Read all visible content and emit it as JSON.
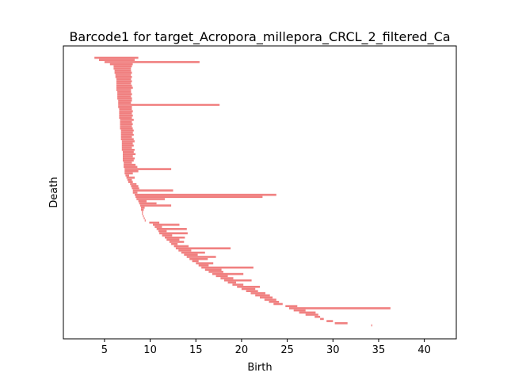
{
  "chart_data": {
    "type": "barcode",
    "title": "Barcode1 for target_Acropora_millepora_CRCL_2_filtered_Ca",
    "xlabel": "Birth",
    "ylabel": "Death",
    "xlim": [
      0.5,
      43.5
    ],
    "xticks": [
      5,
      10,
      15,
      20,
      25,
      30,
      35,
      40
    ],
    "grid": false,
    "bar_color": "#f08080",
    "segments": [
      [
        3.9,
        8.7
      ],
      [
        4.4,
        8.3
      ],
      [
        5.0,
        15.4
      ],
      [
        5.6,
        8.1
      ],
      [
        6.0,
        8.0
      ],
      [
        6.0,
        7.9
      ],
      [
        6.1,
        7.9
      ],
      [
        6.1,
        8.0
      ],
      [
        6.2,
        7.9
      ],
      [
        6.2,
        8.0
      ],
      [
        6.3,
        7.9
      ],
      [
        6.3,
        8.0
      ],
      [
        6.3,
        7.9
      ],
      [
        6.3,
        8.0
      ],
      [
        6.3,
        8.1
      ],
      [
        6.3,
        7.9
      ],
      [
        6.4,
        7.9
      ],
      [
        6.4,
        8.0
      ],
      [
        6.4,
        7.9
      ],
      [
        6.4,
        8.0
      ],
      [
        6.5,
        8.0
      ],
      [
        6.5,
        7.9
      ],
      [
        6.5,
        17.6
      ],
      [
        6.5,
        8.0
      ],
      [
        6.6,
        8.0
      ],
      [
        6.6,
        8.1
      ],
      [
        6.6,
        8.0
      ],
      [
        6.6,
        8.1
      ],
      [
        6.6,
        8.0
      ],
      [
        6.7,
        8.2
      ],
      [
        6.7,
        8.0
      ],
      [
        6.7,
        8.1
      ],
      [
        6.7,
        8.0
      ],
      [
        6.7,
        8.1
      ],
      [
        6.8,
        8.2
      ],
      [
        6.8,
        8.1
      ],
      [
        6.8,
        8.2
      ],
      [
        6.8,
        8.0
      ],
      [
        6.8,
        8.2
      ],
      [
        6.9,
        8.3
      ],
      [
        6.9,
        8.1
      ],
      [
        6.9,
        8.2
      ],
      [
        6.9,
        8.0
      ],
      [
        6.9,
        8.3
      ],
      [
        7.0,
        8.2
      ],
      [
        7.0,
        8.4
      ],
      [
        7.0,
        8.1
      ],
      [
        7.0,
        8.3
      ],
      [
        7.0,
        8.2
      ],
      [
        7.1,
        8.0
      ],
      [
        7.1,
        8.4
      ],
      [
        7.1,
        8.6
      ],
      [
        7.2,
        12.3
      ],
      [
        7.2,
        8.7
      ],
      [
        7.2,
        8.1
      ],
      [
        7.3,
        7.7
      ],
      [
        7.4,
        8.3
      ],
      [
        7.5,
        8.0
      ],
      [
        7.6,
        8.1
      ],
      [
        7.8,
        8.5
      ],
      [
        7.9,
        8.7
      ],
      [
        8.0,
        8.8
      ],
      [
        8.1,
        12.5
      ],
      [
        8.1,
        8.6
      ],
      [
        8.3,
        23.8
      ],
      [
        8.4,
        22.3
      ],
      [
        8.5,
        11.6
      ],
      [
        8.7,
        9.6
      ],
      [
        8.8,
        10.7
      ],
      [
        8.9,
        12.3
      ],
      [
        9.0,
        9.4
      ],
      [
        9.0,
        9.3
      ],
      [
        9.1,
        9.2
      ],
      [
        9.1,
        9.2
      ],
      [
        9.2,
        9.3
      ],
      [
        9.3,
        9.4
      ],
      [
        9.4,
        9.5
      ],
      [
        9.9,
        11.0
      ],
      [
        10.3,
        13.2
      ],
      [
        10.5,
        11.3
      ],
      [
        10.7,
        14.0
      ],
      [
        10.9,
        11.8
      ],
      [
        11.0,
        14.1
      ],
      [
        11.3,
        12.4
      ],
      [
        11.6,
        13.8
      ],
      [
        11.8,
        13.2
      ],
      [
        12.1,
        13.7
      ],
      [
        12.3,
        13.0
      ],
      [
        12.6,
        14.2
      ],
      [
        12.8,
        18.8
      ],
      [
        13.1,
        14.5
      ],
      [
        13.4,
        16.0
      ],
      [
        13.7,
        15.2
      ],
      [
        14.0,
        17.2
      ],
      [
        14.3,
        16.3
      ],
      [
        14.6,
        15.3
      ],
      [
        15.0,
        16.9
      ],
      [
        15.3,
        16.4
      ],
      [
        15.6,
        21.3
      ],
      [
        16.0,
        17.8
      ],
      [
        16.4,
        18.0
      ],
      [
        16.8,
        20.2
      ],
      [
        17.2,
        18.5
      ],
      [
        17.7,
        19.1
      ],
      [
        18.1,
        21.1
      ],
      [
        18.5,
        19.4
      ],
      [
        19.0,
        20.2
      ],
      [
        19.5,
        22.0
      ],
      [
        20.0,
        21.5
      ],
      [
        20.5,
        21.8
      ],
      [
        21.0,
        22.6
      ],
      [
        21.5,
        23.1
      ],
      [
        22.0,
        23.4
      ],
      [
        22.5,
        23.8
      ],
      [
        23.0,
        24.1
      ],
      [
        23.5,
        24.5
      ],
      [
        24.8,
        26.1
      ],
      [
        25.2,
        36.3
      ],
      [
        25.7,
        27.0
      ],
      [
        26.3,
        28.1
      ],
      [
        27.0,
        28.4
      ],
      [
        28.0,
        28.6
      ],
      [
        28.6,
        29.0
      ],
      [
        29.3,
        30.0
      ],
      [
        30.2,
        31.6
      ],
      [
        34.2,
        34.3
      ]
    ]
  }
}
